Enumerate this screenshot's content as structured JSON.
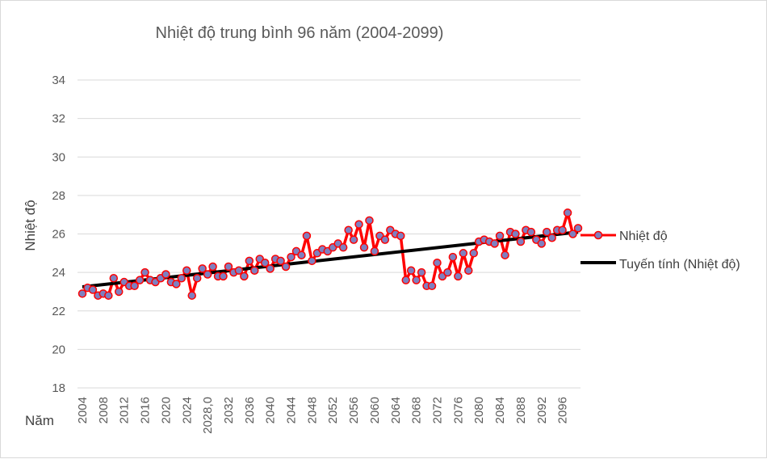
{
  "chart_data": {
    "type": "line",
    "title": "Nhiệt độ trung bình 96 năm (2004-2099)",
    "ylabel": "Nhiệt độ",
    "xlabel": "Năm",
    "ylim": [
      18,
      34
    ],
    "yticks": [
      18,
      20,
      22,
      24,
      26,
      28,
      30,
      32,
      34
    ],
    "xtick_labels": [
      "2004",
      "2008",
      "2012",
      "2016",
      "2020",
      "2024",
      "2028,0",
      "2032",
      "2036",
      "2040",
      "2044",
      "2048",
      "2052",
      "2056",
      "2060",
      "2064",
      "2068",
      "2072",
      "2076",
      "2080",
      "2084",
      "2088",
      "2092",
      "2096"
    ],
    "grid": true,
    "legend_position": "right",
    "years": [
      2004,
      2005,
      2006,
      2007,
      2008,
      2009,
      2010,
      2011,
      2012,
      2013,
      2014,
      2015,
      2016,
      2017,
      2018,
      2019,
      2020,
      2021,
      2022,
      2023,
      2024,
      2025,
      2026,
      2027,
      2028,
      2029,
      2030,
      2031,
      2032,
      2033,
      2034,
      2035,
      2036,
      2037,
      2038,
      2039,
      2040,
      2041,
      2042,
      2043,
      2044,
      2045,
      2046,
      2047,
      2048,
      2049,
      2050,
      2051,
      2052,
      2053,
      2054,
      2055,
      2056,
      2057,
      2058,
      2059,
      2060,
      2061,
      2062,
      2063,
      2064,
      2065,
      2066,
      2067,
      2068,
      2069,
      2070,
      2071,
      2072,
      2073,
      2074,
      2075,
      2076,
      2077,
      2078,
      2079,
      2080,
      2081,
      2082,
      2083,
      2084,
      2085,
      2086,
      2087,
      2088,
      2089,
      2090,
      2091,
      2092,
      2093,
      2094,
      2095,
      2096,
      2097,
      2098,
      2099
    ],
    "series": [
      {
        "name": "Nhiệt độ",
        "color": "#ff0000",
        "marker_fill": "#7f7fbf",
        "values": [
          22.9,
          23.2,
          23.1,
          22.8,
          22.9,
          22.8,
          23.7,
          23.0,
          23.5,
          23.3,
          23.3,
          23.6,
          24.0,
          23.6,
          23.5,
          23.7,
          23.9,
          23.5,
          23.4,
          23.7,
          24.1,
          22.8,
          23.7,
          24.2,
          23.9,
          24.3,
          23.8,
          23.8,
          24.3,
          24.0,
          24.1,
          23.8,
          24.6,
          24.1,
          24.7,
          24.5,
          24.2,
          24.7,
          24.6,
          24.3,
          24.8,
          25.1,
          24.9,
          25.9,
          24.6,
          25.0,
          25.2,
          25.1,
          25.3,
          25.5,
          25.3,
          26.2,
          25.7,
          26.5,
          25.3,
          26.7,
          25.1,
          25.9,
          25.7,
          26.2,
          26.0,
          25.9,
          23.6,
          24.1,
          23.6,
          24.0,
          23.3,
          23.3,
          24.5,
          23.8,
          24.0,
          24.8,
          23.8,
          25.0,
          24.1,
          25.0,
          25.6,
          25.7,
          25.6,
          25.5,
          25.9,
          24.9,
          26.1,
          26.0,
          25.6,
          26.2,
          26.1,
          25.7,
          25.5,
          26.1,
          25.8,
          26.2,
          26.2,
          27.1,
          26.0,
          26.3
        ]
      },
      {
        "name": "Tuyến tính (Nhiệt độ)",
        "color": "#000000",
        "trend_start": 23.25,
        "trend_end": 26.1
      }
    ]
  }
}
